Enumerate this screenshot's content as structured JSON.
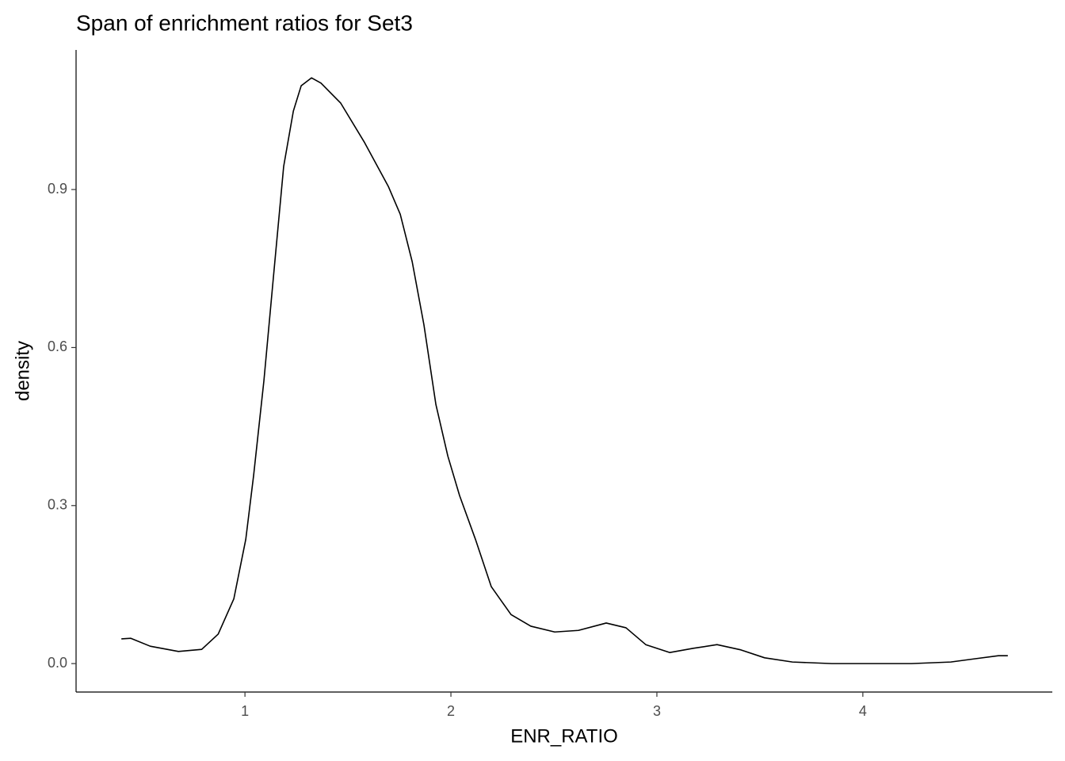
{
  "chart_data": {
    "type": "line",
    "title": "Span of enrichment ratios for Set3",
    "xlabel": "ENR_RATIO",
    "ylabel": "density",
    "x": [
      0.4,
      0.446,
      0.54,
      0.677,
      0.79,
      0.87,
      0.946,
      1.004,
      1.042,
      1.092,
      1.138,
      1.188,
      1.235,
      1.273,
      1.323,
      1.369,
      1.465,
      1.581,
      1.696,
      1.754,
      1.812,
      1.869,
      1.927,
      1.985,
      2.042,
      2.119,
      2.196,
      2.292,
      2.388,
      2.504,
      2.619,
      2.754,
      2.85,
      2.946,
      3.062,
      3.177,
      3.292,
      3.408,
      3.523,
      3.658,
      3.85,
      4.04,
      4.235,
      4.427,
      4.542,
      4.658,
      4.704
    ],
    "y": [
      0.047,
      0.048,
      0.033,
      0.023,
      0.027,
      0.056,
      0.123,
      0.236,
      0.357,
      0.537,
      0.733,
      0.944,
      1.049,
      1.097,
      1.112,
      1.102,
      1.064,
      0.989,
      0.906,
      0.853,
      0.763,
      0.643,
      0.492,
      0.394,
      0.319,
      0.236,
      0.146,
      0.093,
      0.071,
      0.06,
      0.063,
      0.077,
      0.068,
      0.036,
      0.021,
      0.029,
      0.036,
      0.026,
      0.011,
      0.003,
      0,
      0,
      0,
      0.003,
      0.009,
      0.015,
      0.015
    ],
    "color": "#000000",
    "xlim": [
      0.18,
      4.92
    ],
    "xticks": [
      1,
      2,
      3,
      4
    ],
    "ylim": [
      -0.054,
      1.165
    ],
    "yticks": [
      {
        "value": 0,
        "label": "0.0"
      },
      0.3,
      0.6,
      0.9
    ]
  }
}
